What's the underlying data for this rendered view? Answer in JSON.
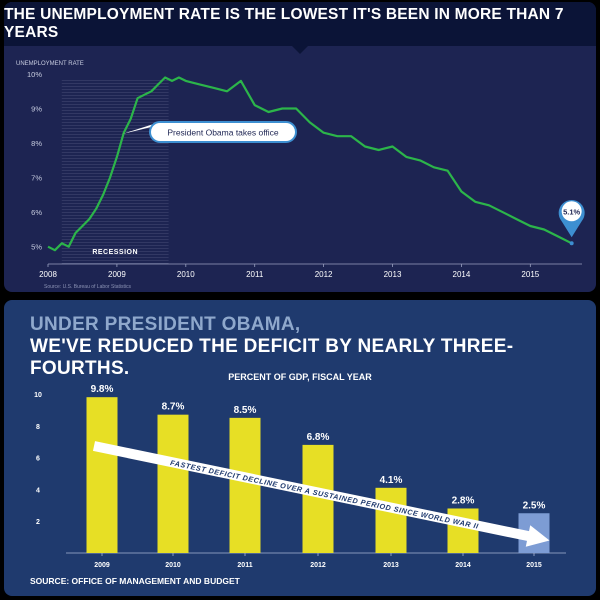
{
  "top": {
    "title": "THE UNEMPLOYMENT RATE IS THE LOWEST IT'S BEEN IN MORE THAN 7 YEARS",
    "source": "Source: U.S. Bureau of Labor Statistics",
    "callout": "President Obama takes office",
    "end_label": "5.1%",
    "recession_label": "RECESSION"
  },
  "bottom": {
    "headline1": "UNDER PRESIDENT OBAMA,",
    "headline2": "WE'VE REDUCED THE DEFICIT BY NEARLY THREE-FOURTHS.",
    "source": "SOURCE: OFFICE OF MANAGEMENT AND BUDGET",
    "arrow_text": "FASTEST DEFICIT DECLINE OVER A SUSTAINED PERIOD SINCE WORLD WAR II"
  },
  "colors": {
    "line": "#2cb54a",
    "bar": "#e7df25",
    "bar_projected": "#7d9cd4",
    "callout_border": "#3d8fd1"
  },
  "chart_data": [
    {
      "type": "line",
      "title": "THE UNEMPLOYMENT RATE IS THE LOWEST IT'S BEEN IN MORE THAN 7 YEARS",
      "ylabel": "UNEMPLOYMENT RATE",
      "xlabel": "",
      "ylim": [
        4.5,
        10
      ],
      "xlim": [
        2008,
        2015.75
      ],
      "yticks": [
        5,
        6,
        7,
        8,
        9,
        10
      ],
      "ytick_labels": [
        "5%",
        "6%",
        "7%",
        "8%",
        "9%",
        "10%"
      ],
      "xticks": [
        2008,
        2009,
        2010,
        2011,
        2012,
        2013,
        2014,
        2015
      ],
      "xtick_labels": [
        "2008",
        "2009",
        "2010",
        "2011",
        "2012",
        "2013",
        "2014",
        "2015"
      ],
      "shaded_region": {
        "label": "RECESSION",
        "x": [
          2008.2,
          2009.75
        ]
      },
      "series": [
        {
          "name": "Unemployment rate",
          "x": [
            2008.0,
            2008.1,
            2008.2,
            2008.3,
            2008.4,
            2008.5,
            2008.6,
            2008.7,
            2008.8,
            2008.9,
            2009.0,
            2009.1,
            2009.2,
            2009.3,
            2009.4,
            2009.5,
            2009.6,
            2009.7,
            2009.8,
            2009.9,
            2010.0,
            2010.2,
            2010.4,
            2010.6,
            2010.8,
            2011.0,
            2011.2,
            2011.4,
            2011.6,
            2011.8,
            2012.0,
            2012.2,
            2012.4,
            2012.6,
            2012.8,
            2013.0,
            2013.2,
            2013.4,
            2013.6,
            2013.8,
            2014.0,
            2014.2,
            2014.4,
            2014.6,
            2014.8,
            2015.0,
            2015.2,
            2015.4,
            2015.6
          ],
          "values": [
            5.0,
            4.9,
            5.1,
            5.0,
            5.4,
            5.6,
            5.8,
            6.1,
            6.5,
            7.0,
            7.6,
            8.3,
            8.7,
            9.3,
            9.4,
            9.5,
            9.7,
            9.9,
            9.8,
            9.9,
            9.8,
            9.7,
            9.6,
            9.5,
            9.8,
            9.1,
            8.9,
            9.0,
            9.0,
            8.6,
            8.3,
            8.2,
            8.2,
            7.9,
            7.8,
            7.9,
            7.6,
            7.5,
            7.3,
            7.2,
            6.6,
            6.3,
            6.2,
            6.0,
            5.8,
            5.6,
            5.5,
            5.3,
            5.1
          ]
        }
      ],
      "annotations": [
        {
          "text": "President Obama takes office",
          "x": 2009.05,
          "y": 7.8
        },
        {
          "text": "5.1%",
          "x": 2015.6,
          "y": 5.1
        }
      ]
    },
    {
      "type": "bar",
      "title": "PERCENT OF GDP, FISCAL YEAR",
      "categories": [
        "2009",
        "2010",
        "2011",
        "2012",
        "2013",
        "2014",
        "2015"
      ],
      "values": [
        9.8,
        8.7,
        8.5,
        6.8,
        4.1,
        2.8,
        2.5
      ],
      "value_labels": [
        "9.8%",
        "8.7%",
        "8.5%",
        "6.8%",
        "4.1%",
        "2.8%",
        "2.5%"
      ],
      "projected": [
        false,
        false,
        false,
        false,
        false,
        false,
        true
      ],
      "ylim": [
        0,
        10
      ],
      "yticks": [
        2,
        4,
        6,
        8,
        10
      ],
      "xlabel": "",
      "ylabel": ""
    }
  ]
}
